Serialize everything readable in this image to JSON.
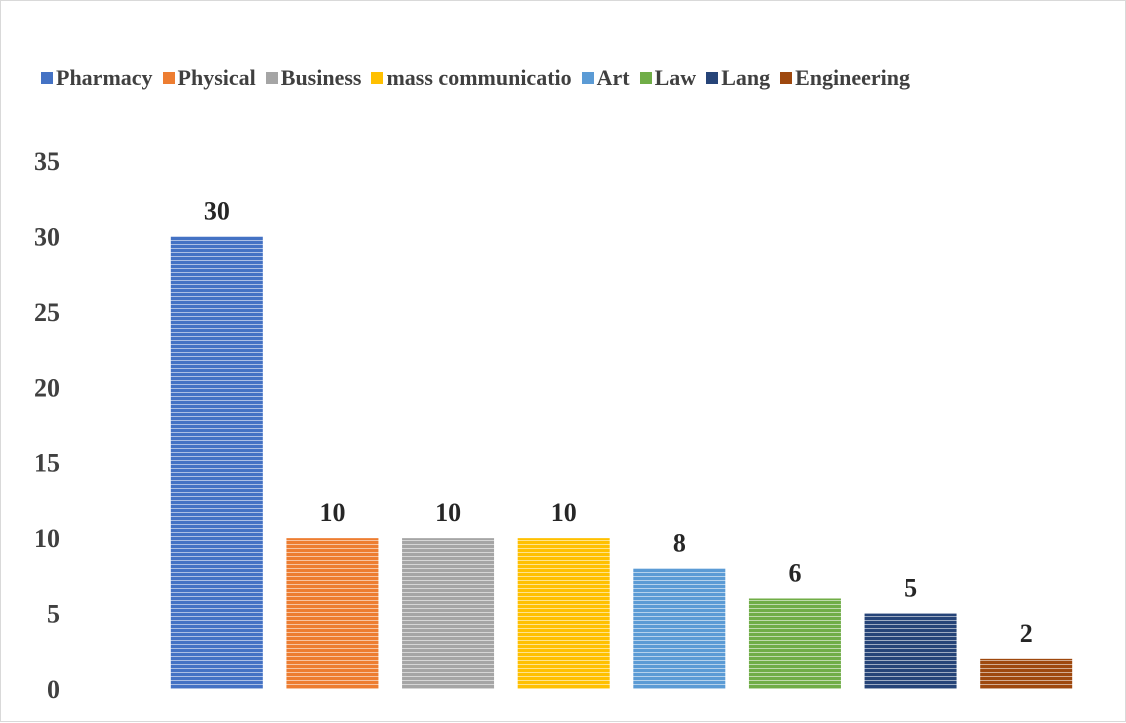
{
  "chart_data": {
    "type": "bar",
    "categories": [
      "Pharmacy",
      "Physical",
      "Business",
      "mass communicatio",
      "Art",
      "Law",
      "Lang",
      "Engineering"
    ],
    "values": [
      30,
      10,
      10,
      10,
      8,
      6,
      5,
      2
    ],
    "colors": [
      "#4472c4",
      "#ed7d31",
      "#a5a5a5",
      "#ffc000",
      "#5b9bd5",
      "#70ad47",
      "#264478",
      "#9e480e"
    ],
    "ylim": [
      0,
      35
    ],
    "yticks": [
      "0",
      "5",
      "10",
      "15",
      "20",
      "25",
      "30",
      "35"
    ],
    "data_labels": [
      "30",
      "10",
      "10",
      "10",
      "8",
      "6",
      "5",
      "2"
    ],
    "legend_position": "top",
    "grid": false,
    "title": "",
    "xlabel": "",
    "ylabel": ""
  }
}
